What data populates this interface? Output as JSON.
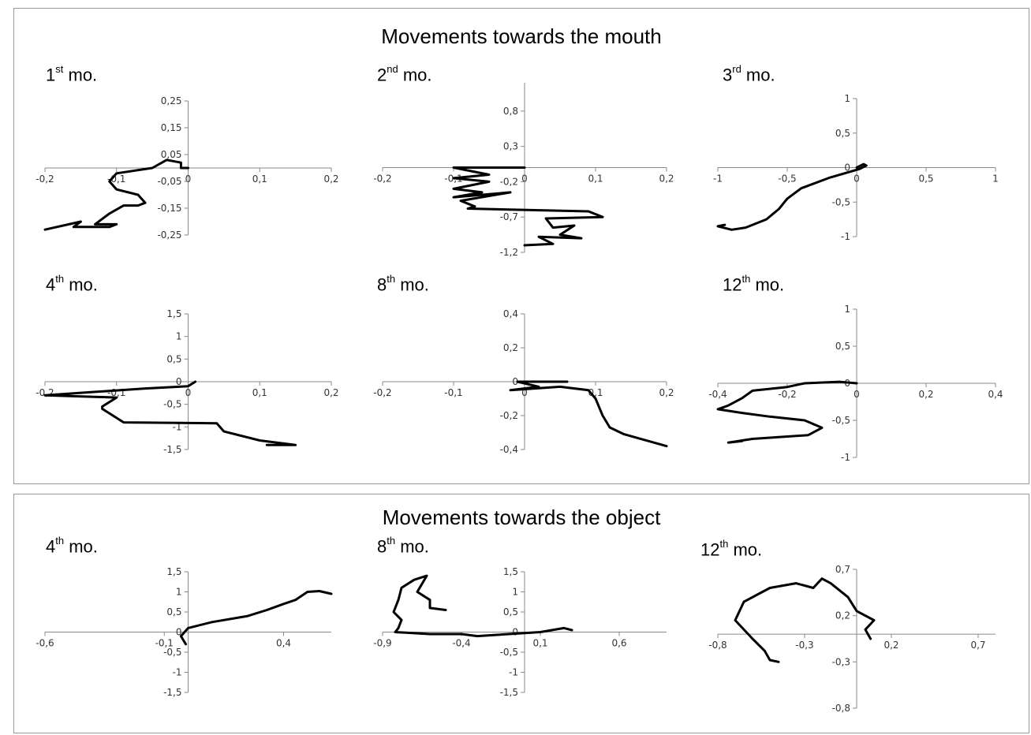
{
  "sections": [
    {
      "title": "Movements towards the mouth"
    },
    {
      "title": "Movements towards the object"
    }
  ],
  "chart_data": [
    {
      "type": "line",
      "section": 0,
      "label_num": "1",
      "label_sup": "st",
      "label_rest": " mo.",
      "xlim": [
        -0.2,
        0.2
      ],
      "ylim": [
        -0.25,
        0.25
      ],
      "xticks": [
        -0.2,
        -0.1,
        0,
        0.1,
        0.2
      ],
      "xtick_labels": [
        "-0,2",
        "-0,1",
        "0",
        "0,1",
        "0,2"
      ],
      "yticks": [
        -0.25,
        -0.15,
        -0.05,
        0.05,
        0.15,
        0.25
      ],
      "ytick_labels": [
        "-0,25",
        "-0,15",
        "-0,05",
        "0,05",
        "0,15",
        "0,25"
      ],
      "series": [
        {
          "x": [
            0,
            -0.01,
            -0.01,
            -0.03,
            -0.05,
            -0.1,
            -0.11,
            -0.1,
            -0.07,
            -0.06,
            -0.07,
            -0.09,
            -0.11,
            -0.13,
            -0.1,
            -0.11,
            -0.16,
            -0.15,
            -0.2
          ],
          "y": [
            0,
            0,
            0.02,
            0.03,
            0,
            -0.02,
            -0.05,
            -0.08,
            -0.1,
            -0.13,
            -0.14,
            -0.14,
            -0.17,
            -0.21,
            -0.21,
            -0.22,
            -0.22,
            -0.2,
            -0.23
          ]
        }
      ]
    },
    {
      "type": "line",
      "section": 0,
      "label_num": "2",
      "label_sup": "nd",
      "label_rest": " mo.",
      "xlim": [
        -0.2,
        0.2
      ],
      "ylim": [
        -1.2,
        1.2
      ],
      "xticks": [
        -0.2,
        -0.1,
        0,
        0.1,
        0.2
      ],
      "xtick_labels": [
        "-0,2",
        "-0,1",
        "0",
        "0,1",
        "0,2"
      ],
      "yticks": [
        -1.2,
        -0.7,
        -0.2,
        0.3,
        0.8
      ],
      "ytick_labels": [
        "-1,2",
        "-0,7",
        "-0,2",
        "0,3",
        "0,8"
      ],
      "series": [
        {
          "x": [
            0,
            -0.1,
            -0.05,
            -0.1,
            -0.05,
            -0.1,
            -0.06,
            -0.1,
            -0.02,
            -0.09,
            -0.07,
            -0.08,
            0.09,
            0.11,
            0.03,
            0.04,
            0.07,
            0.05,
            0.08,
            0.02,
            0.04,
            0
          ],
          "y": [
            0,
            0,
            -0.1,
            -0.15,
            -0.2,
            -0.3,
            -0.35,
            -0.42,
            -0.35,
            -0.47,
            -0.55,
            -0.58,
            -0.62,
            -0.7,
            -0.72,
            -0.85,
            -0.82,
            -0.95,
            -1.0,
            -0.98,
            -1.08,
            -1.1
          ]
        }
      ]
    },
    {
      "type": "line",
      "section": 0,
      "label_num": "3",
      "label_sup": "rd",
      "label_rest": " mo.",
      "xlim": [
        -1,
        1
      ],
      "ylim": [
        -1,
        1
      ],
      "xticks": [
        -1,
        -0.5,
        0,
        0.5,
        1
      ],
      "xtick_labels": [
        "-1",
        "-0,5",
        "0",
        "0,5",
        "1"
      ],
      "yticks": [
        -1,
        -0.5,
        0,
        0.5,
        1
      ],
      "ytick_labels": [
        "-1",
        "-0,5",
        "0",
        "0,5",
        "1"
      ],
      "series": [
        {
          "x": [
            0,
            0.05,
            0.07,
            0.02,
            -0.2,
            -0.4,
            -0.5,
            -0.56,
            -0.65,
            -0.8,
            -0.9,
            -1.0,
            -0.95
          ],
          "y": [
            0,
            0.05,
            0.03,
            -0.02,
            -0.15,
            -0.3,
            -0.45,
            -0.6,
            -0.75,
            -0.87,
            -0.9,
            -0.85,
            -0.83
          ]
        }
      ]
    },
    {
      "type": "line",
      "section": 0,
      "label_num": "4",
      "label_sup": "th",
      "label_rest": " mo.",
      "xlim": [
        -0.2,
        0.2
      ],
      "ylim": [
        -1.5,
        1.5
      ],
      "xticks": [
        -0.2,
        -0.1,
        0,
        0.1,
        0.2
      ],
      "xtick_labels": [
        "-0,2",
        "-0,1",
        "0",
        "0,1",
        "0,2"
      ],
      "yticks": [
        -1.5,
        -1,
        -0.5,
        0,
        0.5,
        1,
        1.5
      ],
      "ytick_labels": [
        "-1,5",
        "-1",
        "-0,5",
        "0",
        "0,5",
        "1",
        "1,5"
      ],
      "series": [
        {
          "x": [
            0.01,
            0,
            -0.06,
            -0.2,
            -0.1,
            -0.12,
            -0.12,
            -0.09,
            0.04,
            0.05,
            0.1,
            0.15,
            0.11
          ],
          "y": [
            0,
            -0.1,
            -0.15,
            -0.3,
            -0.35,
            -0.55,
            -0.6,
            -0.9,
            -0.92,
            -1.1,
            -1.3,
            -1.4,
            -1.4
          ]
        }
      ]
    },
    {
      "type": "line",
      "section": 0,
      "label_num": "8",
      "label_sup": "th",
      "label_rest": " mo.",
      "xlim": [
        -0.2,
        0.2
      ],
      "ylim": [
        -0.4,
        0.4
      ],
      "xticks": [
        -0.2,
        -0.1,
        0,
        0.1,
        0.2
      ],
      "xtick_labels": [
        "-0,2",
        "-0,1",
        "0",
        "0,1",
        "0,2"
      ],
      "yticks": [
        -0.4,
        -0.2,
        0,
        0.2,
        0.4
      ],
      "ytick_labels": [
        "-0,4",
        "-0,2",
        "0",
        "0,2",
        "0,4"
      ],
      "series": [
        {
          "x": [
            0.06,
            0.04,
            -0.01,
            0.02,
            -0.02,
            0.05,
            0.09,
            0.1,
            0.11,
            0.12,
            0.14,
            0.2
          ],
          "y": [
            0,
            0,
            0,
            -0.03,
            -0.05,
            -0.03,
            -0.05,
            -0.1,
            -0.2,
            -0.27,
            -0.31,
            -0.38
          ]
        }
      ]
    },
    {
      "type": "line",
      "section": 0,
      "label_num": "12",
      "label_sup": "th",
      "label_rest": " mo.",
      "xlim": [
        -0.4,
        0.4
      ],
      "ylim": [
        -1,
        1
      ],
      "xticks": [
        -0.4,
        -0.2,
        0,
        0.2,
        0.4
      ],
      "xtick_labels": [
        "-0,4",
        "-0,2",
        "0",
        "0,2",
        "0,4"
      ],
      "yticks": [
        -1,
        -0.5,
        0,
        0.5,
        1
      ],
      "ytick_labels": [
        "-1",
        "-0,5",
        "0",
        "0,5",
        "1"
      ],
      "series": [
        {
          "x": [
            0,
            -0.05,
            -0.15,
            -0.2,
            -0.3,
            -0.33,
            -0.37,
            -0.4,
            -0.33,
            -0.25,
            -0.15,
            -0.1,
            -0.14,
            -0.3,
            -0.37,
            -0.33
          ],
          "y": [
            0,
            0.02,
            0,
            -0.05,
            -0.1,
            -0.2,
            -0.3,
            -0.35,
            -0.4,
            -0.45,
            -0.5,
            -0.6,
            -0.7,
            -0.75,
            -0.8,
            -0.78
          ]
        }
      ]
    },
    {
      "type": "line",
      "section": 1,
      "label_num": "4",
      "label_sup": "th",
      "label_rest": " mo.",
      "xlim": [
        -0.6,
        0.6
      ],
      "ylim": [
        -1.5,
        1.5
      ],
      "xticks": [
        -0.6,
        -0.1,
        0.4
      ],
      "xtick_labels": [
        "-0,6",
        "-0,1",
        "0,4"
      ],
      "yticks": [
        -1.5,
        -1,
        -0.5,
        0,
        0.5,
        1,
        1.5
      ],
      "ytick_labels": [
        "-1,5",
        "-1",
        "-0,5",
        "0",
        "0,5",
        "1",
        "1,5"
      ],
      "series": [
        {
          "x": [
            -0.01,
            -0.03,
            0,
            0.1,
            0.25,
            0.33,
            0.4,
            0.45,
            0.5,
            0.55,
            0.6
          ],
          "y": [
            -0.3,
            -0.1,
            0.1,
            0.25,
            0.4,
            0.55,
            0.7,
            0.8,
            1.0,
            1.02,
            0.95
          ]
        }
      ]
    },
    {
      "type": "line",
      "section": 1,
      "label_num": "8",
      "label_sup": "th",
      "label_rest": " mo.",
      "xlim": [
        -0.9,
        0.9
      ],
      "ylim": [
        -1.5,
        1.5
      ],
      "xticks": [
        -0.9,
        -0.4,
        0.1,
        0.6
      ],
      "xtick_labels": [
        "-0,9",
        "-0,4",
        "0,1",
        "0,6"
      ],
      "yticks": [
        -1.5,
        -1,
        -0.5,
        0,
        0.5,
        1,
        1.5
      ],
      "ytick_labels": [
        "-1,5",
        "-1",
        "-0,5",
        "0",
        "0,5",
        "1",
        "1,5"
      ],
      "series": [
        {
          "x": [
            -0.5,
            -0.6,
            -0.6,
            -0.68,
            -0.62,
            -0.7,
            -0.78,
            -0.8,
            -0.83,
            -0.78,
            -0.8,
            -0.82,
            -0.6,
            -0.4,
            -0.3,
            -0.1,
            0.1,
            0.25,
            0.3
          ],
          "y": [
            0.55,
            0.6,
            0.8,
            1.0,
            1.4,
            1.3,
            1.1,
            0.8,
            0.5,
            0.3,
            0.1,
            0,
            -0.05,
            -0.05,
            -0.1,
            -0.05,
            0,
            0.1,
            0.05
          ]
        }
      ]
    },
    {
      "type": "line",
      "section": 1,
      "label_num": "12",
      "label_sup": "th",
      "label_rest": " mo.",
      "xlim": [
        -0.8,
        0.8
      ],
      "ylim": [
        -0.8,
        0.7
      ],
      "xticks": [
        -0.8,
        -0.3,
        0.2,
        0.7
      ],
      "xtick_labels": [
        "-0,8",
        "-0,3",
        "0,2",
        "0,7"
      ],
      "yticks": [
        -0.8,
        -0.3,
        0.2,
        0.7
      ],
      "ytick_labels": [
        "-0,8",
        "-0,3",
        "0,2",
        "0,7"
      ],
      "series": [
        {
          "x": [
            -0.45,
            -0.5,
            -0.53,
            -0.6,
            -0.7,
            -0.65,
            -0.5,
            -0.35,
            -0.25,
            -0.2,
            -0.15,
            -0.05,
            0,
            0.1,
            0.05,
            0.08
          ],
          "y": [
            -0.3,
            -0.28,
            -0.18,
            -0.05,
            0.15,
            0.35,
            0.5,
            0.55,
            0.5,
            0.6,
            0.55,
            0.4,
            0.25,
            0.15,
            0.05,
            -0.05
          ]
        }
      ]
    }
  ]
}
